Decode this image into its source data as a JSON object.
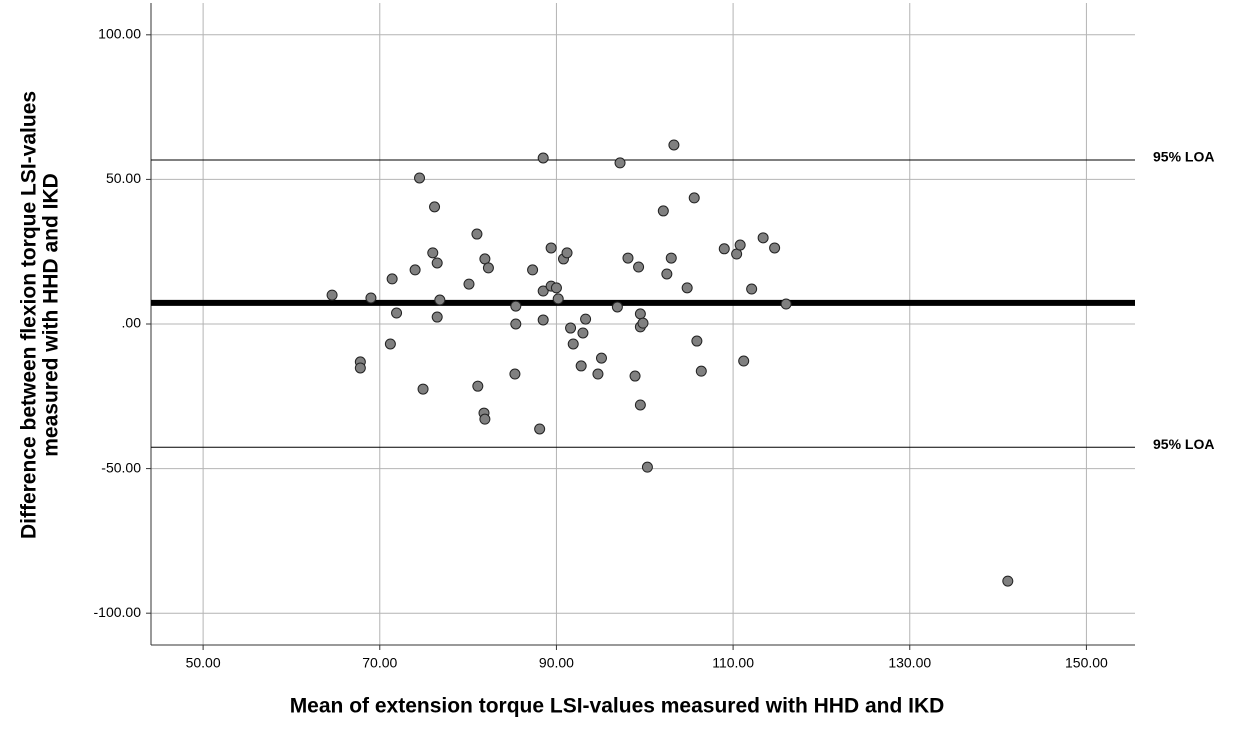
{
  "chart_data": {
    "type": "scatter",
    "xlabel": "Mean of extension torque LSI-values measured with HHD and IKD",
    "ylabel": [
      "Difference between flexion torque LSI-values",
      "measured with HHD and IKD"
    ],
    "x": [
      64.6,
      67.8,
      67.8,
      69.0,
      71.2,
      71.4,
      71.9,
      74.0,
      74.5,
      74.9,
      76.0,
      76.2,
      76.5,
      76.5,
      76.8,
      80.1,
      81.0,
      81.1,
      81.8,
      81.9,
      81.9,
      82.3,
      85.3,
      85.4,
      85.4,
      87.3,
      88.1,
      88.5,
      88.5,
      88.5,
      89.4,
      89.4,
      90.0,
      90.2,
      90.8,
      91.2,
      91.6,
      91.9,
      92.8,
      93.0,
      93.3,
      94.7,
      95.1,
      96.9,
      97.2,
      98.1,
      98.9,
      99.3,
      99.5,
      99.5,
      99.5,
      99.8,
      100.3,
      102.5,
      102.1,
      103.0,
      103.3,
      104.8,
      105.6,
      105.9,
      106.4,
      109.0,
      110.4,
      110.8,
      111.2,
      112.1,
      113.4,
      114.7,
      116.0,
      141.1
    ],
    "values": [
      10.0,
      -13.1,
      -15.2,
      9.0,
      -6.9,
      15.6,
      3.8,
      18.7,
      50.5,
      -22.5,
      24.6,
      40.5,
      21.1,
      2.4,
      8.3,
      13.8,
      31.1,
      -21.5,
      -30.8,
      22.5,
      -32.9,
      19.4,
      -17.3,
      6.2,
      0.0,
      18.7,
      -36.3,
      57.4,
      11.4,
      1.4,
      26.3,
      13.1,
      12.5,
      8.7,
      22.5,
      24.6,
      -1.4,
      -6.9,
      -14.5,
      -3.1,
      1.7,
      -17.3,
      -11.8,
      5.9,
      55.7,
      22.8,
      -18.0,
      19.7,
      3.5,
      -1.0,
      -28.0,
      0.3,
      -49.5,
      17.3,
      39.1,
      22.8,
      61.9,
      12.5,
      43.6,
      -5.9,
      -16.3,
      26.0,
      24.2,
      27.3,
      -12.8,
      12.1,
      29.8,
      26.3,
      6.9,
      -88.9
    ],
    "color": "#808080",
    "xlim": [
      44.1,
      155.5
    ],
    "ylim": [
      -111,
      111
    ],
    "xticks": [
      {
        "value": 50,
        "label": "50.00"
      },
      {
        "value": 70,
        "label": "70.00"
      },
      {
        "value": 90,
        "label": "90.00"
      },
      {
        "value": 110,
        "label": "110.00"
      },
      {
        "value": 130,
        "label": "130.00"
      },
      {
        "value": 150,
        "label": "150.00"
      }
    ],
    "yticks": [
      {
        "value": -100,
        "label": "-100.00"
      },
      {
        "value": -50,
        "label": "-50.00"
      },
      {
        "value": 0,
        "label": ".00"
      },
      {
        "value": 50,
        "label": "50.00"
      },
      {
        "value": 100,
        "label": "100.00"
      }
    ],
    "reference_lines": [
      {
        "value": 56.7,
        "label": "95% LOA"
      },
      {
        "value": 7.3
      },
      {
        "value": -42.6,
        "label": "95% LOA"
      }
    ],
    "grid": true
  }
}
